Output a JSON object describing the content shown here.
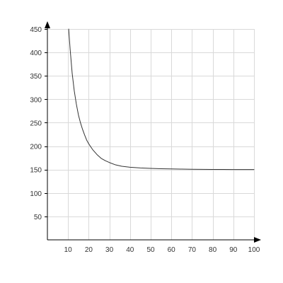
{
  "chart_data": {
    "type": "line",
    "title": "",
    "xlabel": "",
    "ylabel": "",
    "grid": true,
    "xlim": [
      0,
      100
    ],
    "ylim": [
      0,
      450
    ],
    "x_ticks": [
      10,
      20,
      30,
      40,
      50,
      60,
      70,
      80,
      90,
      100
    ],
    "y_ticks": [
      50,
      100,
      150,
      200,
      250,
      300,
      350,
      400,
      450
    ],
    "x_tick_labels": [
      "10",
      "20",
      "30",
      "40",
      "50",
      "60",
      "70",
      "80",
      "90",
      "100"
    ],
    "y_tick_labels": [
      "50",
      "100",
      "150",
      "200",
      "250",
      "300",
      "350",
      "400",
      "450"
    ],
    "series": [
      {
        "color": "#333333",
        "x": [
          10.3,
          11,
          12,
          13,
          14,
          15,
          16,
          17,
          18,
          19,
          20,
          22,
          24,
          26,
          28,
          30,
          33,
          36,
          40,
          45,
          50,
          55,
          60,
          65,
          70,
          75,
          80,
          85,
          90,
          95,
          100
        ],
        "y": [
          450,
          407,
          355,
          318,
          290,
          267,
          250,
          236,
          224,
          213,
          205,
          192,
          182,
          174,
          169,
          165,
          160,
          157,
          155,
          153.5,
          152.5,
          151.8,
          151.3,
          151,
          150.6,
          150.4,
          150.3,
          150.2,
          150.1,
          150.05,
          150
        ]
      }
    ]
  }
}
